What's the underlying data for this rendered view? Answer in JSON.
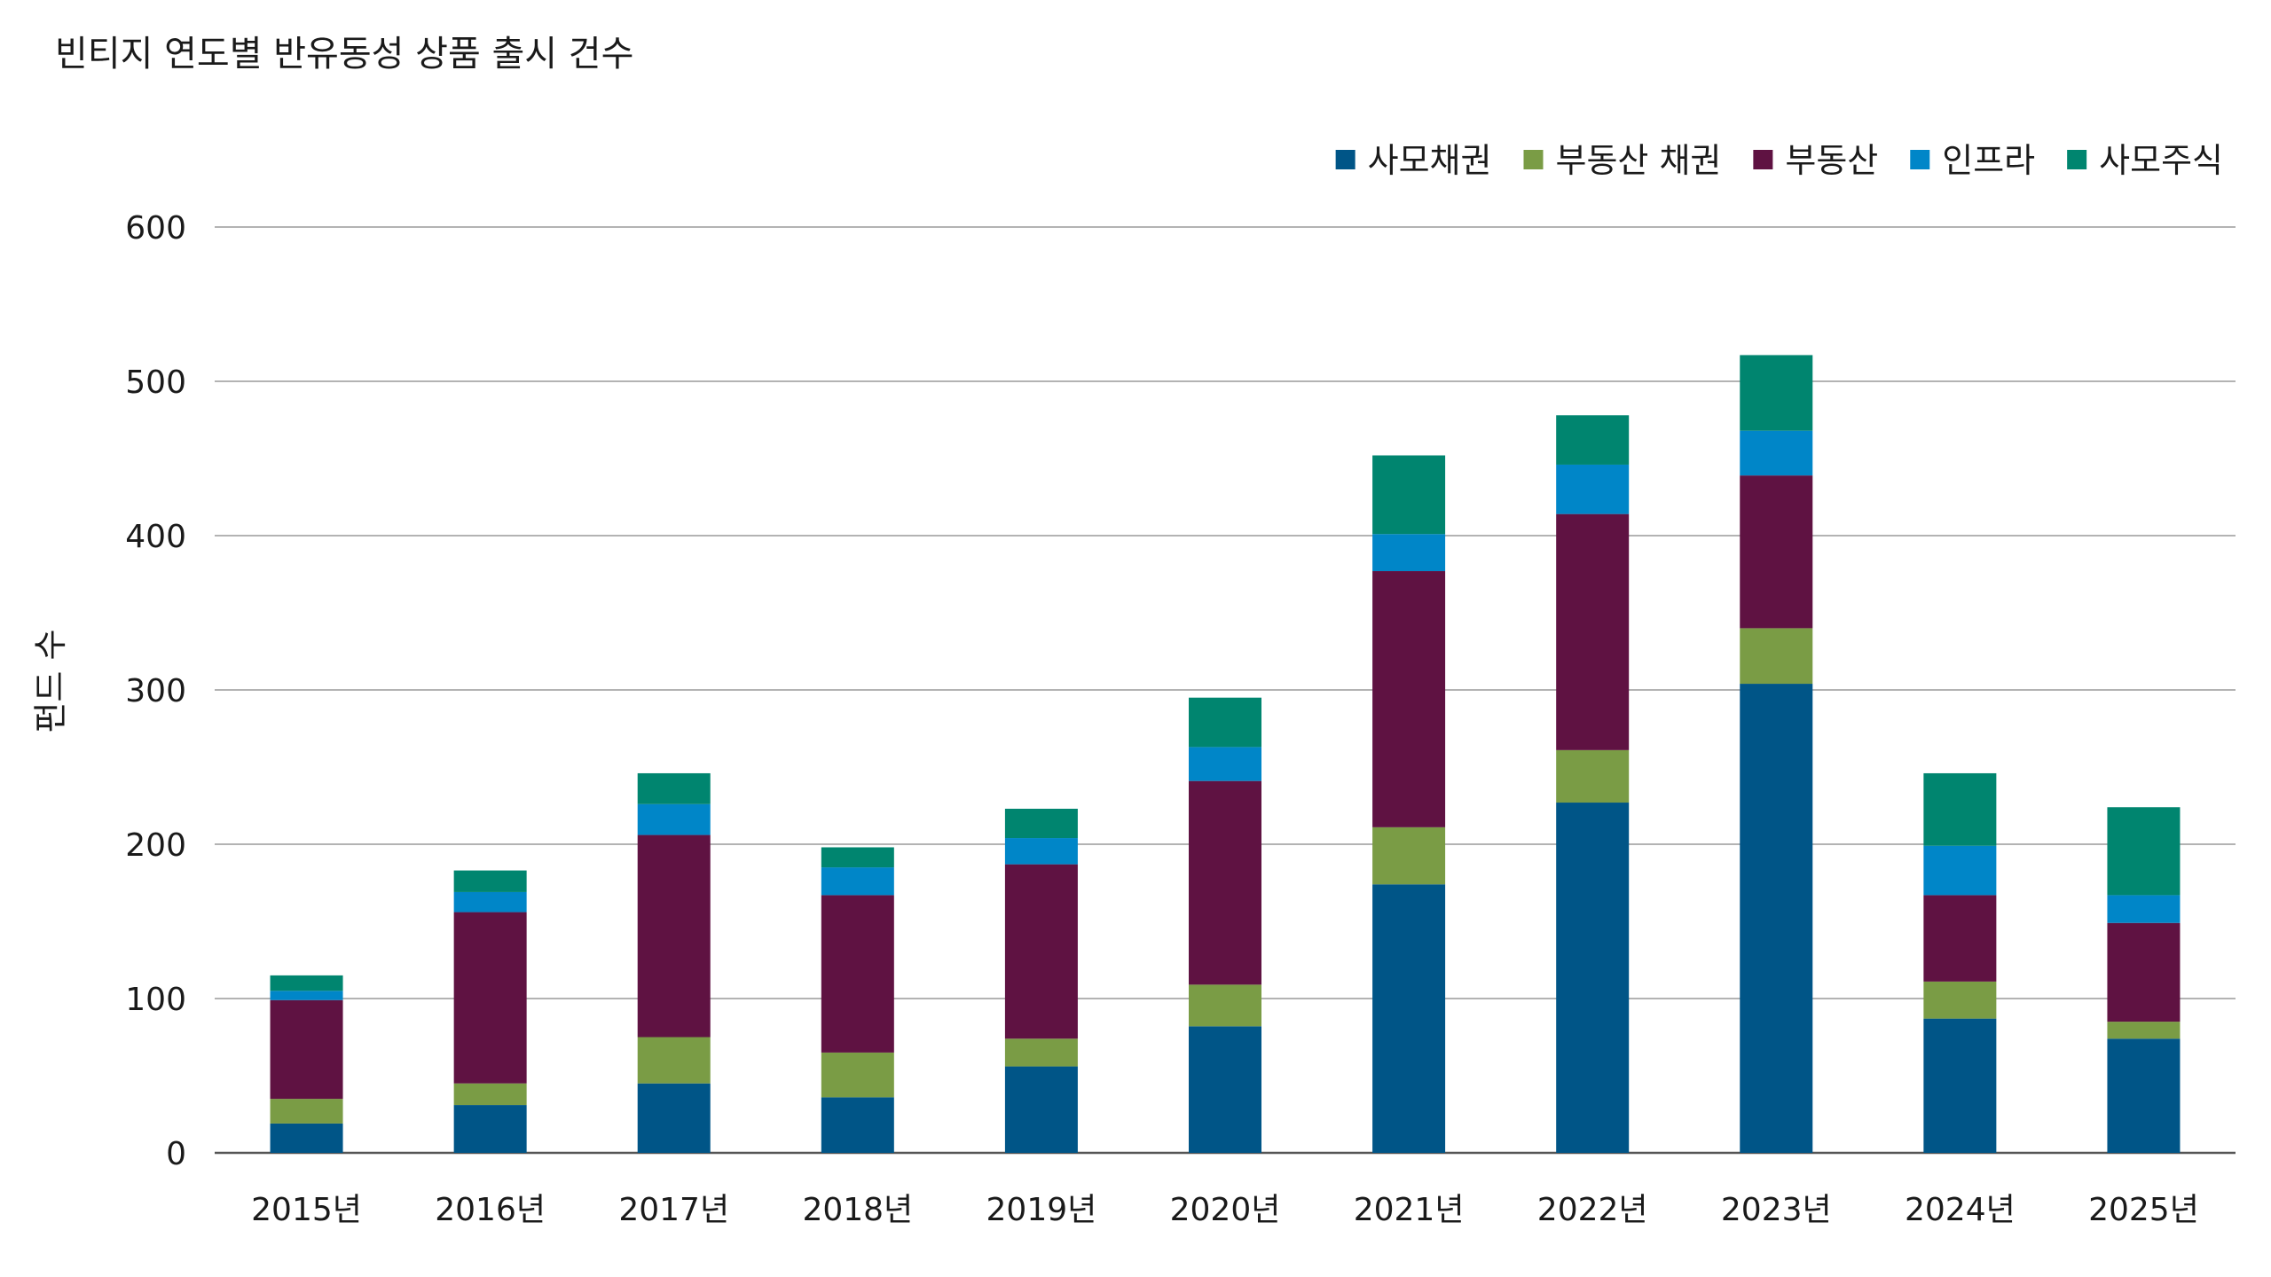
{
  "chart_data": {
    "type": "bar",
    "stacked": true,
    "title": "빈티지 연도별 반유동성 상품 출시 건수",
    "xlabel": "",
    "ylabel": "펀드 수",
    "ylim": [
      0,
      600
    ],
    "yticks": [
      0,
      100,
      200,
      300,
      400,
      500,
      600
    ],
    "grid": true,
    "legend_position": "top-right",
    "categories": [
      "2015년",
      "2016년",
      "2017년",
      "2018년",
      "2019년",
      "2020년",
      "2021년",
      "2022년",
      "2023년",
      "2024년",
      "2025년"
    ],
    "series": [
      {
        "name": "사모채권",
        "color": "#005587",
        "values": [
          19,
          31,
          45,
          36,
          56,
          82,
          174,
          227,
          304,
          87,
          74
        ]
      },
      {
        "name": "부동산 채권",
        "color": "#7a9c45",
        "values": [
          16,
          14,
          30,
          29,
          18,
          27,
          37,
          34,
          36,
          24,
          11
        ]
      },
      {
        "name": "부동산",
        "color": "#5f1242",
        "values": [
          64,
          111,
          131,
          102,
          113,
          132,
          166,
          153,
          99,
          56,
          64
        ]
      },
      {
        "name": "인프라",
        "color": "#0086c8",
        "values": [
          6,
          13,
          20,
          18,
          17,
          22,
          24,
          32,
          29,
          32,
          18
        ]
      },
      {
        "name": "사모주식",
        "color": "#00856f",
        "values": [
          10,
          14,
          20,
          13,
          19,
          32,
          51,
          32,
          49,
          47,
          57
        ]
      }
    ]
  }
}
